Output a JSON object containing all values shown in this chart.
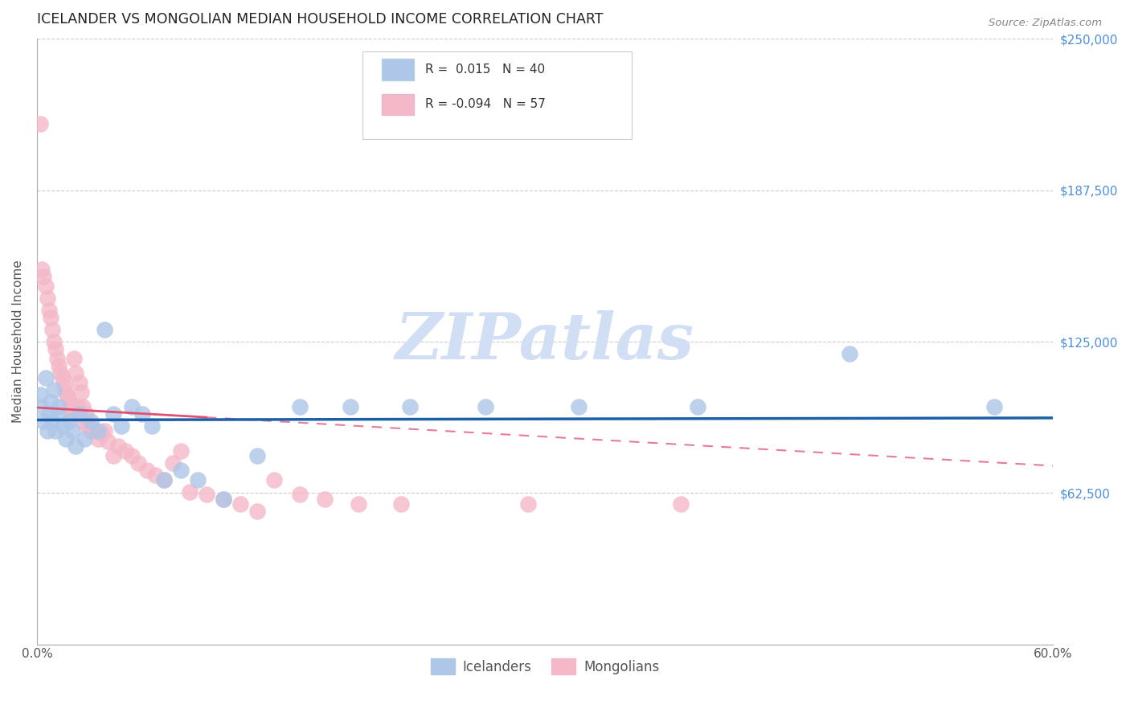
{
  "title": "ICELANDER VS MONGOLIAN MEDIAN HOUSEHOLD INCOME CORRELATION CHART",
  "source": "Source: ZipAtlas.com",
  "ylabel": "Median Household Income",
  "xlim": [
    0.0,
    0.6
  ],
  "ylim": [
    0,
    250000
  ],
  "yticks": [
    0,
    62500,
    125000,
    187500,
    250000
  ],
  "ytick_labels": [
    "",
    "$62,500",
    "$125,000",
    "$187,500",
    "$250,000"
  ],
  "xticks": [
    0.0,
    0.1,
    0.2,
    0.3,
    0.4,
    0.5,
    0.6
  ],
  "xtick_labels": [
    "0.0%",
    "",
    "",
    "",
    "",
    "",
    "60.0%"
  ],
  "r_icelander": 0.015,
  "n_icelander": 40,
  "r_mongolian": -0.094,
  "n_mongolian": 57,
  "icelander_color": "#aec6e8",
  "mongolian_color": "#f4b8c8",
  "icelander_line_color": "#1a5fa8",
  "mongolian_line_color": "#e05070",
  "watermark_color": "#d0dff4",
  "icelander_x": [
    0.002,
    0.003,
    0.004,
    0.005,
    0.006,
    0.007,
    0.008,
    0.009,
    0.01,
    0.011,
    0.012,
    0.013,
    0.015,
    0.017,
    0.019,
    0.021,
    0.023,
    0.025,
    0.028,
    0.032,
    0.036,
    0.04,
    0.045,
    0.05,
    0.056,
    0.062,
    0.068,
    0.075,
    0.085,
    0.095,
    0.11,
    0.13,
    0.155,
    0.185,
    0.22,
    0.265,
    0.32,
    0.39,
    0.48,
    0.565
  ],
  "icelander_y": [
    103000,
    98000,
    92000,
    110000,
    88000,
    95000,
    100000,
    92000,
    105000,
    88000,
    95000,
    98000,
    90000,
    85000,
    92000,
    88000,
    82000,
    95000,
    85000,
    92000,
    88000,
    130000,
    95000,
    90000,
    98000,
    95000,
    90000,
    68000,
    72000,
    68000,
    60000,
    78000,
    98000,
    98000,
    98000,
    98000,
    98000,
    98000,
    120000,
    98000
  ],
  "mongolian_x": [
    0.002,
    0.003,
    0.004,
    0.005,
    0.006,
    0.007,
    0.008,
    0.009,
    0.01,
    0.011,
    0.012,
    0.013,
    0.014,
    0.015,
    0.016,
    0.017,
    0.018,
    0.019,
    0.02,
    0.021,
    0.022,
    0.023,
    0.024,
    0.025,
    0.026,
    0.027,
    0.028,
    0.029,
    0.03,
    0.032,
    0.034,
    0.036,
    0.038,
    0.04,
    0.042,
    0.045,
    0.048,
    0.052,
    0.056,
    0.06,
    0.065,
    0.07,
    0.075,
    0.08,
    0.085,
    0.09,
    0.1,
    0.11,
    0.12,
    0.13,
    0.14,
    0.155,
    0.17,
    0.19,
    0.215,
    0.29,
    0.38
  ],
  "mongolian_y": [
    215000,
    155000,
    152000,
    148000,
    143000,
    138000,
    135000,
    130000,
    125000,
    122000,
    118000,
    115000,
    112000,
    110000,
    107000,
    104000,
    102000,
    100000,
    97000,
    95000,
    118000,
    112000,
    98000,
    108000,
    104000,
    98000,
    91000,
    95000,
    91000,
    88000,
    88000,
    85000,
    87000,
    88000,
    84000,
    78000,
    82000,
    80000,
    78000,
    75000,
    72000,
    70000,
    68000,
    75000,
    80000,
    63000,
    62000,
    60000,
    58000,
    55000,
    68000,
    62000,
    60000,
    58000,
    58000,
    58000,
    58000
  ]
}
